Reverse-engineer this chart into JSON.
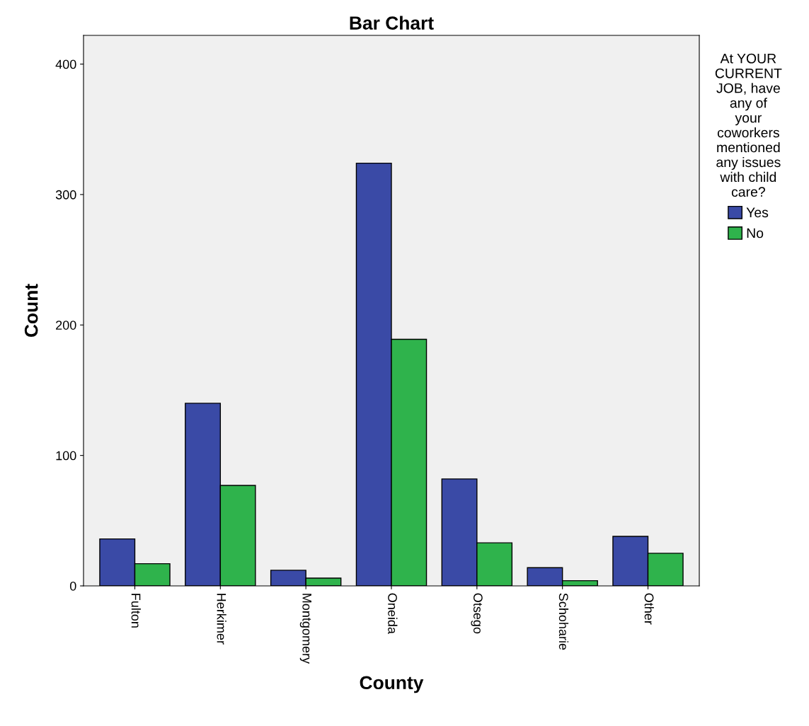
{
  "chart_data": {
    "type": "bar",
    "title": "Bar Chart",
    "xlabel": "County",
    "ylabel": "Count",
    "legend_title": "At YOUR CURRENT JOB, have any of your coworkers mentioned any issues with child care?",
    "categories": [
      "Fulton",
      "Herkimer",
      "Montgomery",
      "Oneida",
      "Otsego",
      "Schoharie",
      "Other"
    ],
    "series": [
      {
        "name": "Yes",
        "color": "#3a4aa6",
        "values": [
          36,
          140,
          12,
          324,
          82,
          14,
          38
        ]
      },
      {
        "name": "No",
        "color": "#2fb34c",
        "values": [
          17,
          77,
          6,
          189,
          33,
          4,
          25
        ]
      }
    ],
    "ylim": [
      0,
      422
    ],
    "yticks": [
      0,
      100,
      200,
      300,
      400
    ],
    "grid": false,
    "legend": "top right"
  }
}
